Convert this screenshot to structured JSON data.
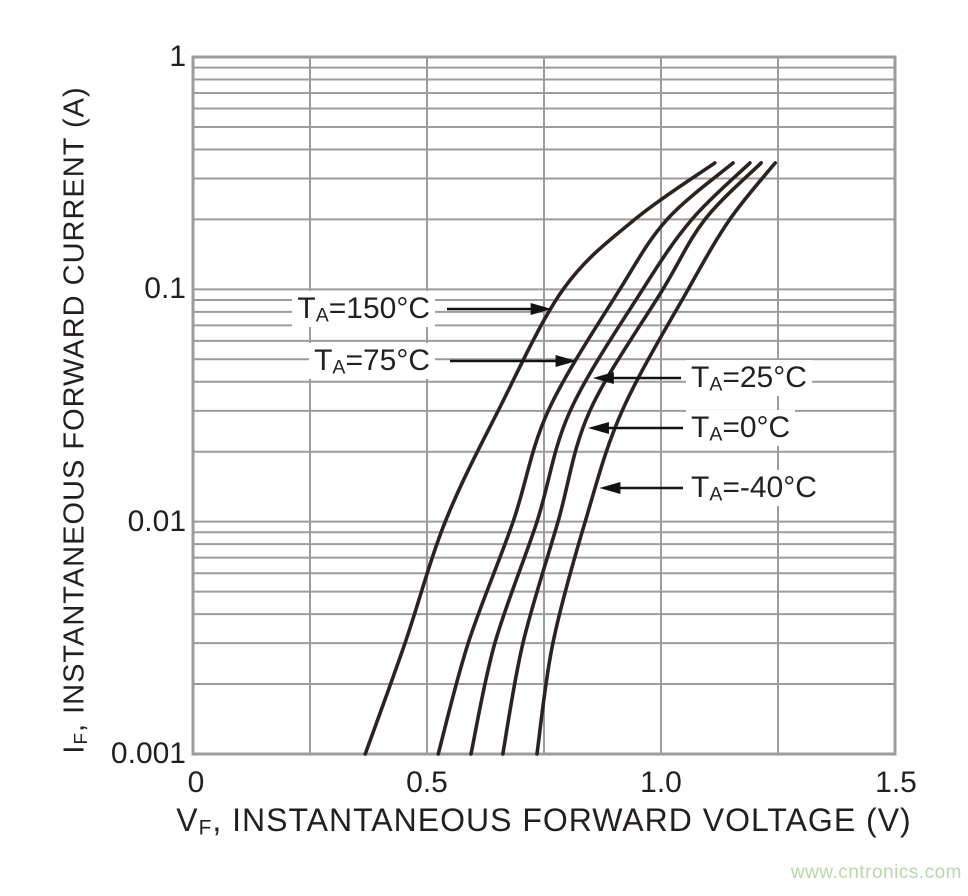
{
  "watermark": {
    "text": "www.cntronics.com",
    "color": "#b7d9aa"
  },
  "chart_data": {
    "type": "line",
    "title": "",
    "xlabel_full": "VF, INSTANTANEOUS FORWARD VOLTAGE (V)",
    "ylabel_full": "IF, INSTANTANEOUS FORWARD CURRENT (A)",
    "x_axis": {
      "label": {
        "base": "V",
        "sub": "F",
        "rest": ", INSTANTANEOUS FORWARD VOLTAGE (V)"
      },
      "scale": "linear",
      "min": 0,
      "max": 1.5,
      "ticks": [
        "0",
        "0.5",
        "1.0",
        "1.5"
      ],
      "tick_values": [
        0,
        0.5,
        1.0,
        1.5
      ],
      "minor_grid_step": 0.25,
      "unit": "V"
    },
    "y_axis": {
      "label": {
        "base": "I",
        "sub": "F",
        "rest": ", INSTANTANEOUS FORWARD CURRENT (A)"
      },
      "scale": "log",
      "min": 0.001,
      "max": 1,
      "ticks": [
        "1",
        "0.1",
        "0.01",
        "0.001"
      ],
      "tick_values": [
        1,
        0.1,
        0.01,
        0.001
      ],
      "minor_grid": "log mantissas 2-9 each decade",
      "unit": "A"
    },
    "grid": true,
    "legend_position": "inline annotations with arrows",
    "series": [
      {
        "name": "TA=150°C",
        "label": {
          "base": "T",
          "sub": "A",
          "rest": "=150°C"
        },
        "label_side": "left",
        "points_v_i": [
          [
            0.368,
            0.001
          ],
          [
            0.453,
            0.003
          ],
          [
            0.539,
            0.01
          ],
          [
            0.652,
            0.03
          ],
          [
            0.791,
            0.1
          ],
          [
            0.944,
            0.2
          ],
          [
            1.115,
            0.35
          ]
        ]
      },
      {
        "name": "TA=75°C",
        "label": {
          "base": "T",
          "sub": "A",
          "rest": "=75°C"
        },
        "label_side": "left",
        "points_v_i": [
          [
            0.524,
            0.001
          ],
          [
            0.588,
            0.003
          ],
          [
            0.684,
            0.01
          ],
          [
            0.759,
            0.03
          ],
          [
            0.912,
            0.1
          ],
          [
            1.013,
            0.2
          ],
          [
            1.154,
            0.35
          ]
        ]
      },
      {
        "name": "TA=25°C",
        "label": {
          "base": "T",
          "sub": "A",
          "rest": "=25°C"
        },
        "label_side": "right",
        "points_v_i": [
          [
            0.594,
            0.001
          ],
          [
            0.645,
            0.003
          ],
          [
            0.735,
            0.01
          ],
          [
            0.806,
            0.03
          ],
          [
            0.961,
            0.1
          ],
          [
            1.066,
            0.2
          ],
          [
            1.19,
            0.35
          ]
        ]
      },
      {
        "name": "TA=0°C",
        "label": {
          "base": "T",
          "sub": "A",
          "rest": "=0°C"
        },
        "label_side": "right",
        "points_v_i": [
          [
            0.662,
            0.001
          ],
          [
            0.705,
            0.003
          ],
          [
            0.78,
            0.01
          ],
          [
            0.848,
            0.03
          ],
          [
            1.004,
            0.1
          ],
          [
            1.094,
            0.2
          ],
          [
            1.214,
            0.35
          ]
        ]
      },
      {
        "name": "TA=-40°C",
        "label": {
          "base": "T",
          "sub": "A",
          "rest": "=-40°C"
        },
        "label_side": "right",
        "points_v_i": [
          [
            0.735,
            0.001
          ],
          [
            0.769,
            0.003
          ],
          [
            0.838,
            0.01
          ],
          [
            0.917,
            0.03
          ],
          [
            1.058,
            0.1
          ],
          [
            1.147,
            0.2
          ],
          [
            1.244,
            0.35
          ]
        ]
      }
    ],
    "colors": {
      "curve": "#2b2320",
      "grid": "#9c9c9c",
      "frame": "#9c9c9c",
      "text": "#231f20",
      "arrow": "#121212",
      "background": "#ffffff"
    }
  }
}
